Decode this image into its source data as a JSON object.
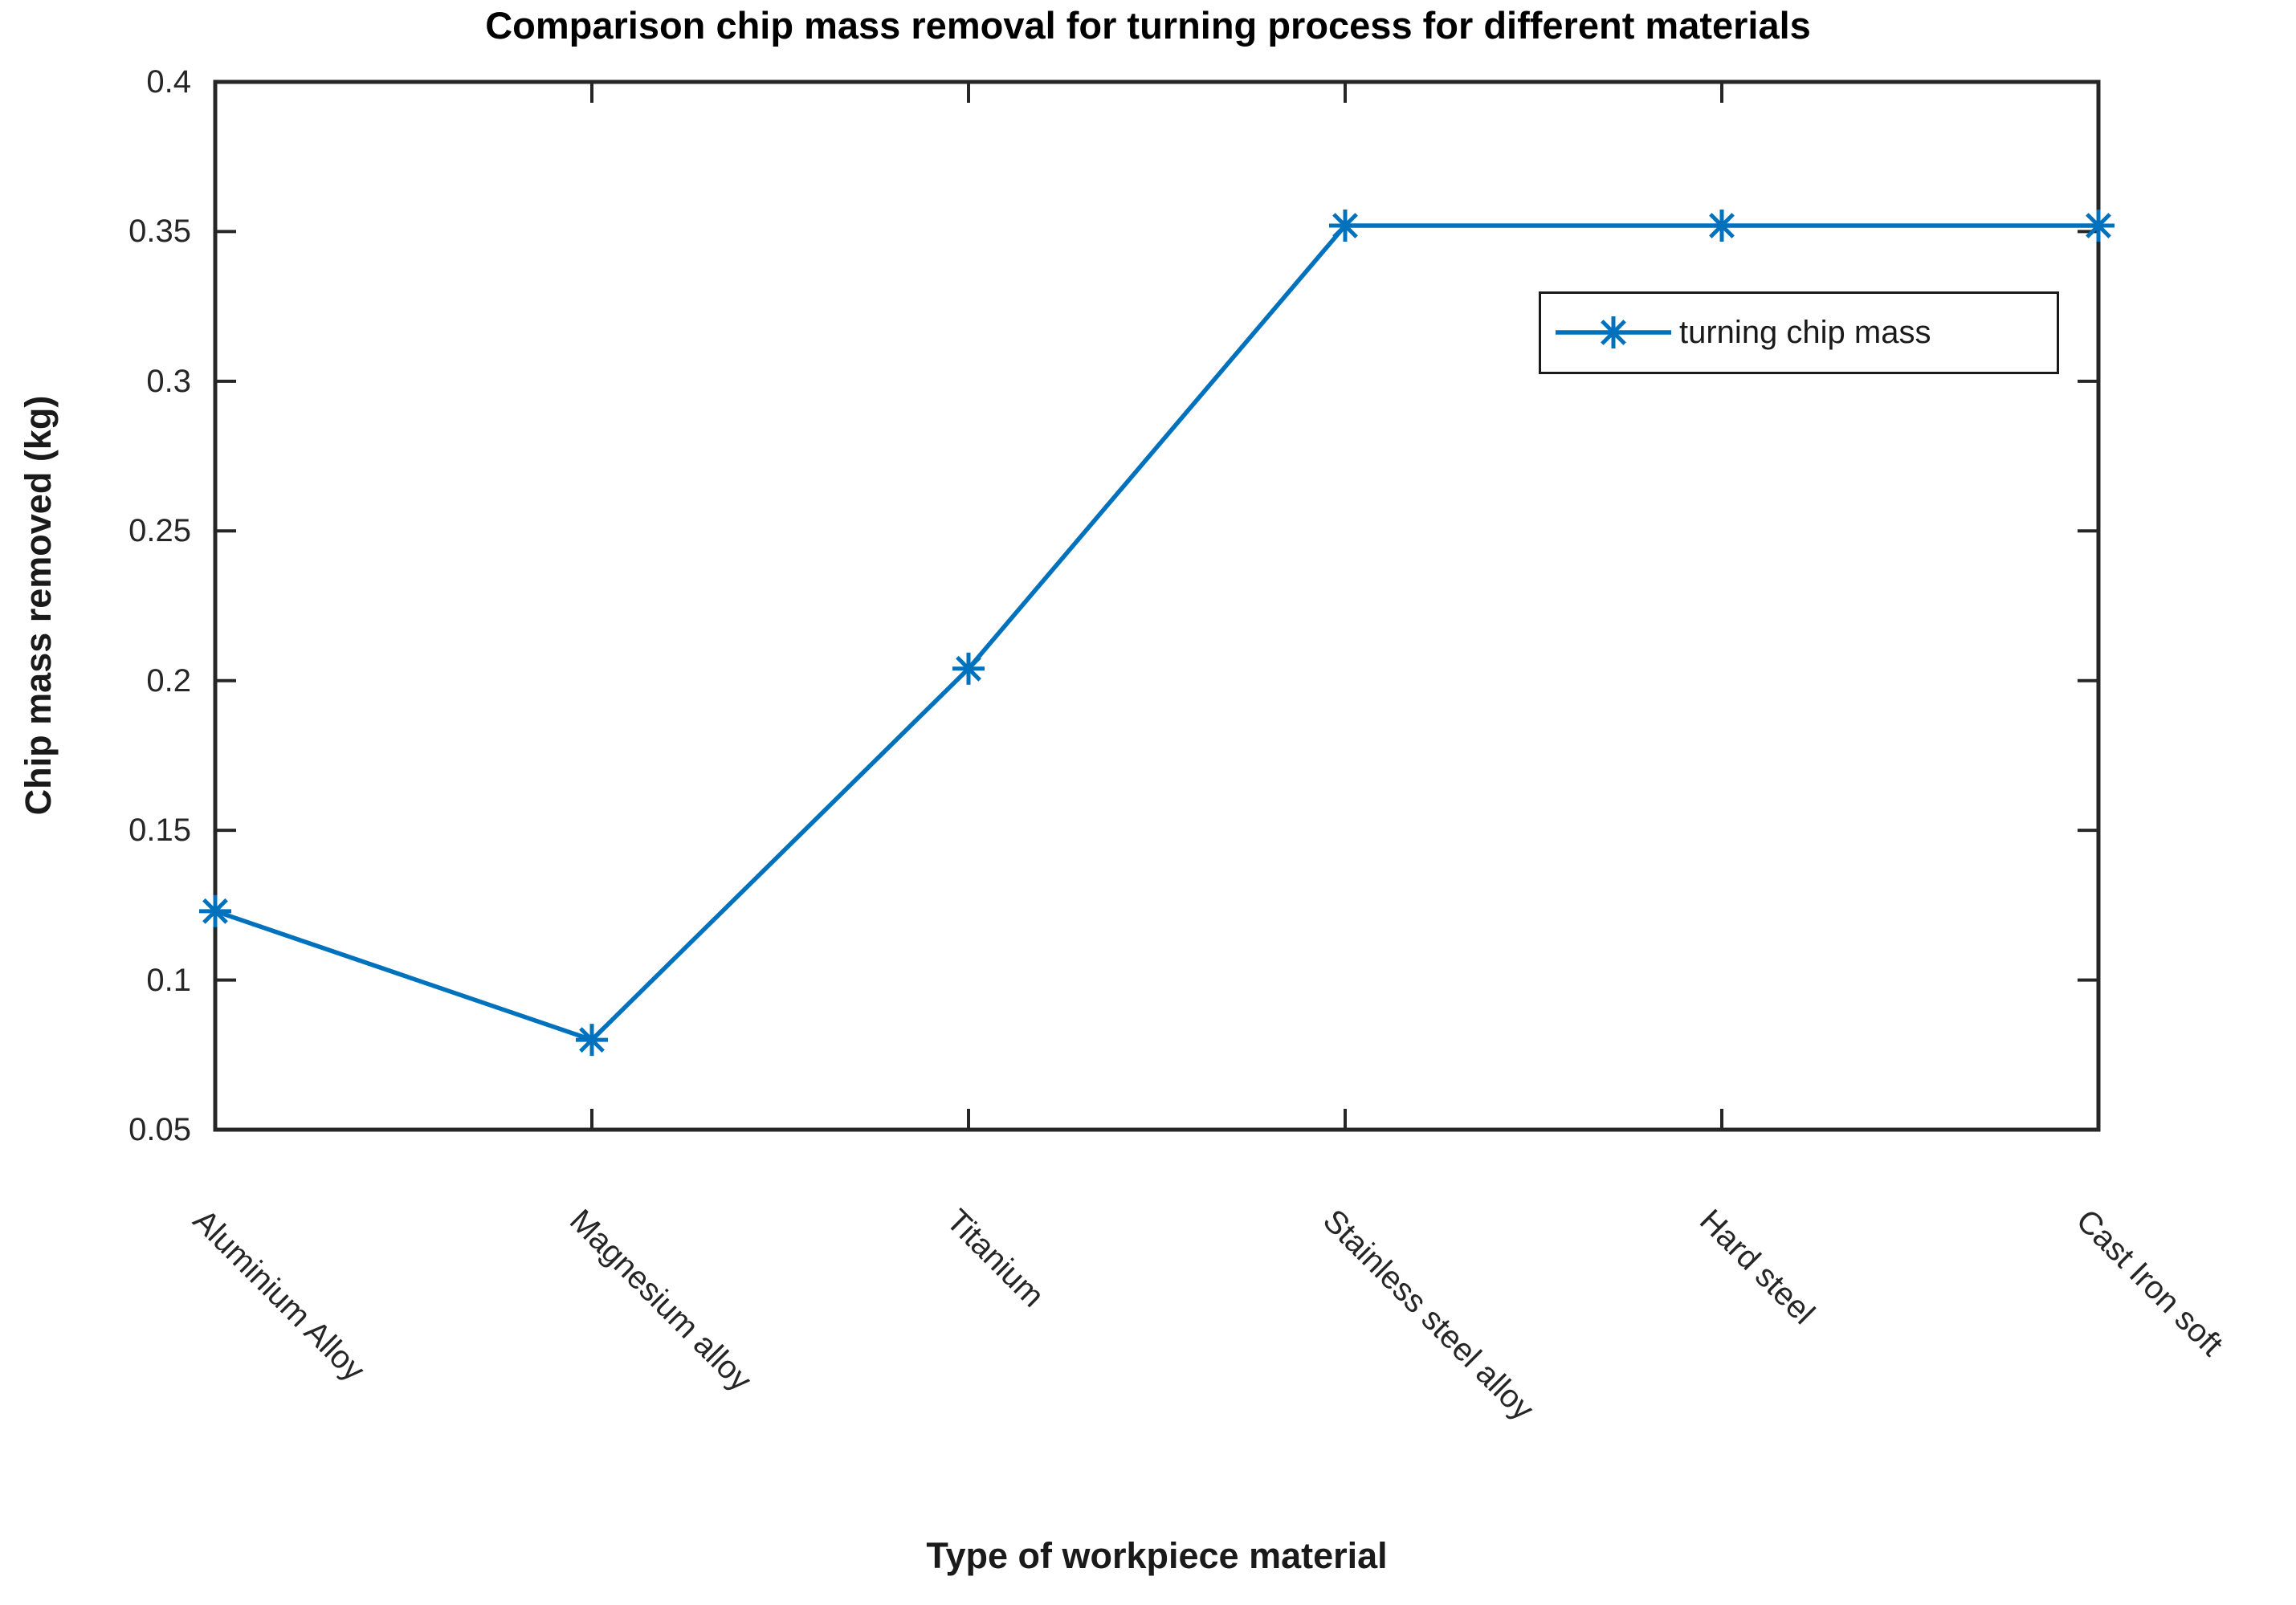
{
  "chart_data": {
    "type": "line",
    "title": "Comparison chip mass removal for turning process for different materials",
    "xlabel": "Type of workpiece material",
    "ylabel": "Chip mass removed (kg)",
    "categories": [
      "Aluminium Alloy",
      "Magnesium alloy",
      "Titanium",
      "Stainless steel alloy",
      "Hard steel",
      "Cast Iron soft"
    ],
    "series": [
      {
        "name": "turning chip mass",
        "values": [
          0.123,
          0.08,
          0.204,
          0.352,
          0.352,
          0.352
        ],
        "color": "#0072BD",
        "marker": "asterisk"
      }
    ],
    "ylim": [
      0.05,
      0.4
    ],
    "ytick_labels": [
      "0.05",
      "0.1",
      "0.15",
      "0.2",
      "0.25",
      "0.3",
      "0.35",
      "0.4"
    ],
    "xtick_angle_deg": 45,
    "grid": false,
    "axis_color": "#262626",
    "legend": {
      "entries": [
        "turning chip mass"
      ],
      "position": "upper right",
      "border_color": "#1a1a1a"
    }
  }
}
